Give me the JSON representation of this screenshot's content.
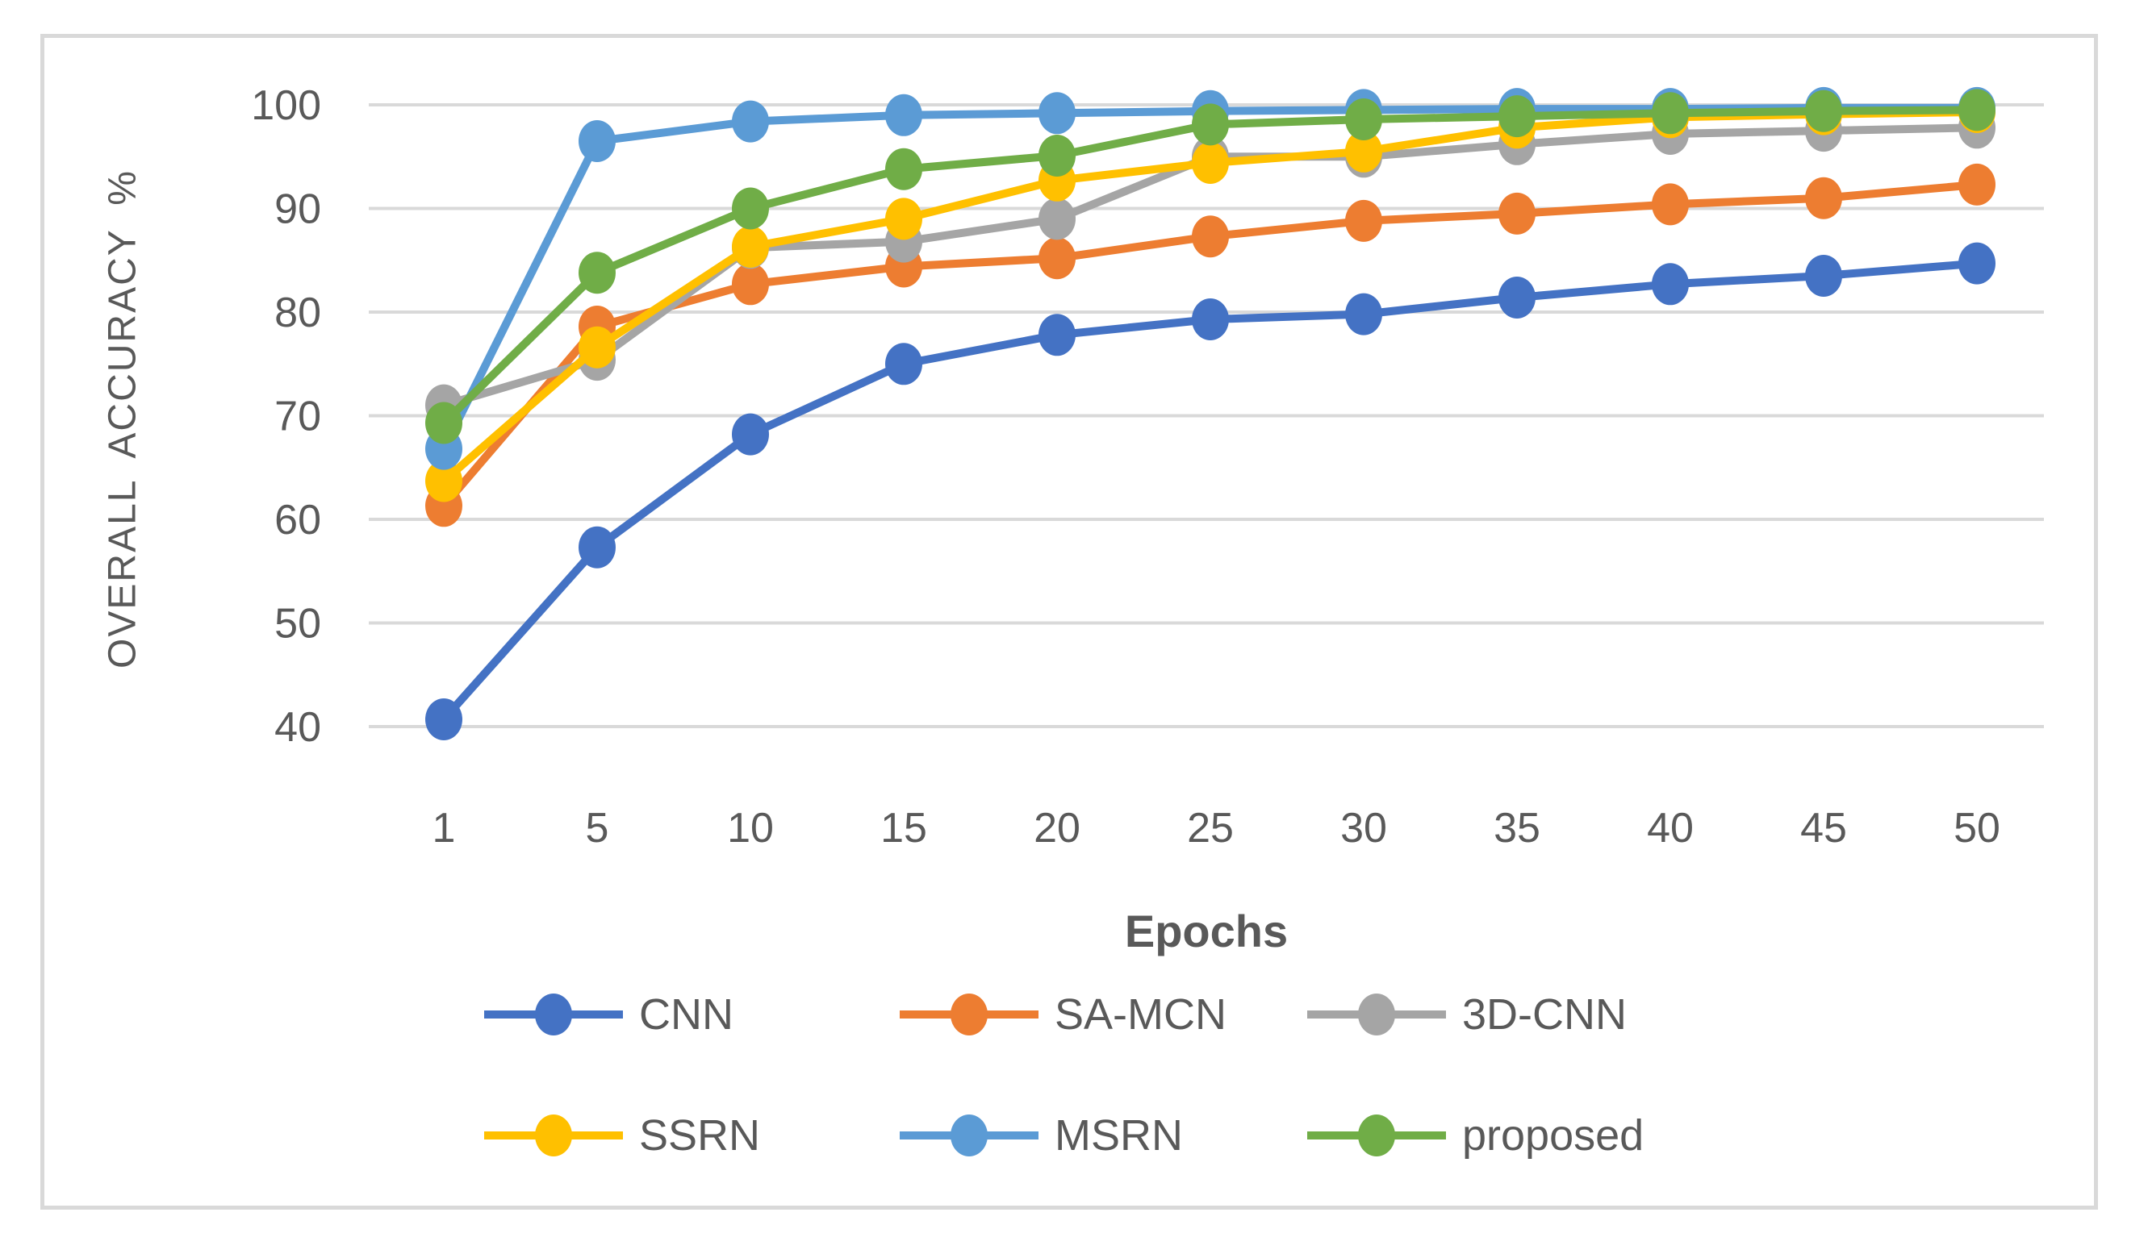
{
  "chart_data": {
    "type": "line",
    "title": "",
    "xlabel": "Epochs",
    "ylabel": "OVERALL ACCURACY %",
    "categories": [
      "1",
      "5",
      "10",
      "15",
      "20",
      "25",
      "30",
      "35",
      "40",
      "45",
      "50"
    ],
    "yticks": [
      40,
      50,
      60,
      70,
      80,
      90,
      100
    ],
    "ylim": [
      40,
      100
    ],
    "grid": "horizontal",
    "legend_position": "bottom",
    "marker": "circle",
    "series": [
      {
        "name": "CNN",
        "color": "#4472C4",
        "values": [
          40.7,
          57.3,
          68.2,
          75.0,
          77.8,
          79.3,
          79.8,
          81.4,
          82.7,
          83.5,
          84.7
        ]
      },
      {
        "name": "SA-MCN",
        "color": "#ED7D31",
        "values": [
          61.3,
          78.6,
          82.7,
          84.4,
          85.2,
          87.3,
          88.8,
          89.5,
          90.4,
          91.0,
          92.3
        ]
      },
      {
        "name": "3D-CNN",
        "color": "#A5A5A5",
        "values": [
          71.0,
          75.4,
          86.2,
          86.8,
          89.0,
          95.0,
          95.0,
          96.2,
          97.2,
          97.5,
          97.8
        ]
      },
      {
        "name": "SSRN",
        "color": "#FFC000",
        "values": [
          63.7,
          76.6,
          86.3,
          89.0,
          92.7,
          94.4,
          95.5,
          97.8,
          98.8,
          99.1,
          99.3
        ]
      },
      {
        "name": "MSRN",
        "color": "#5B9BD5",
        "values": [
          66.8,
          96.5,
          98.4,
          99.0,
          99.2,
          99.4,
          99.5,
          99.6,
          99.6,
          99.7,
          99.7
        ]
      },
      {
        "name": "proposed",
        "color": "#70AD47",
        "values": [
          69.3,
          83.8,
          90.0,
          93.8,
          95.1,
          98.1,
          98.6,
          98.9,
          99.2,
          99.4,
          99.5
        ]
      }
    ],
    "legend_rows": [
      [
        "CNN",
        "SA-MCN",
        "3D-CNN"
      ],
      [
        "SSRN",
        "MSRN",
        "proposed"
      ]
    ],
    "colors": {
      "gridline": "#D9D9D9",
      "axis_text": "#595959",
      "frame_border": "#D9D9D9",
      "background": "#FFFFFF"
    }
  }
}
